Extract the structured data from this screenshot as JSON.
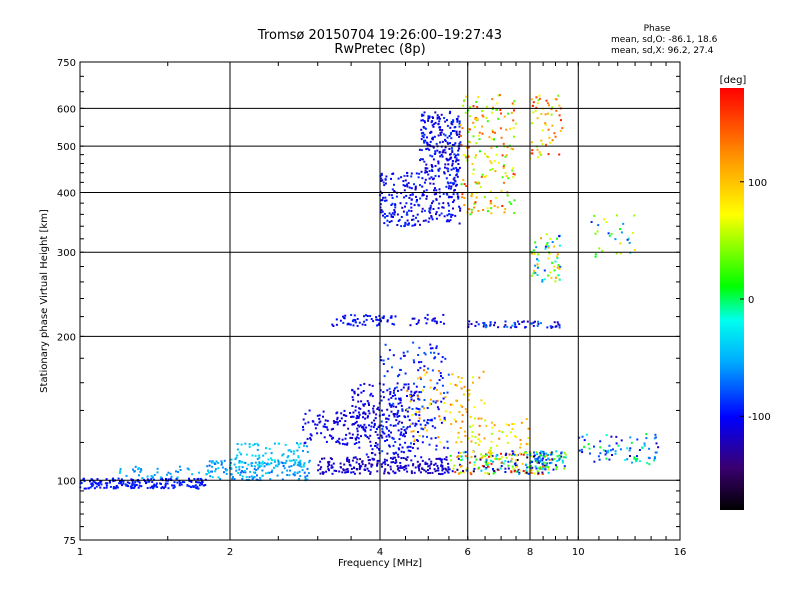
{
  "header": {
    "title_line1": "Tromsø 20150704 19:26:00–19:27:43",
    "title_line2": "RwPretec (8p)",
    "phase_heading": "Phase",
    "phase_o": "mean, sd,O: -86.1, 18.6",
    "phase_x": "mean, sd,X:  96.2, 27.4"
  },
  "colorbar": {
    "unit": "[deg]",
    "ticks": [
      {
        "value": 100,
        "label": "100"
      },
      {
        "value": 0,
        "label": "0"
      },
      {
        "value": -100,
        "label": "-100"
      }
    ],
    "range": [
      -180,
      180
    ]
  },
  "chart_data": {
    "type": "scatter",
    "title": "Tromsø 20150704 19:26:00–19:27:43",
    "subtitle": "RwPretec (8p)",
    "xlabel": "Frequency [MHz]",
    "ylabel": "Stationary phase Virtual Height [km]",
    "x_scale": "log",
    "y_scale": "log",
    "xlim": [
      1,
      16
    ],
    "ylim": [
      75,
      750
    ],
    "x_ticks": [
      {
        "value": 1,
        "label": "1"
      },
      {
        "value": 2,
        "label": "2"
      },
      {
        "value": 4,
        "label": "4"
      },
      {
        "value": 6,
        "label": "6"
      },
      {
        "value": 8,
        "label": "8"
      },
      {
        "value": 10,
        "label": "10"
      },
      {
        "value": 16,
        "label": "16"
      }
    ],
    "y_ticks": [
      {
        "value": 75,
        "label": "75"
      },
      {
        "value": 100,
        "label": "100"
      },
      {
        "value": 200,
        "label": "200"
      },
      {
        "value": 300,
        "label": "300"
      },
      {
        "value": 400,
        "label": "400"
      },
      {
        "value": 500,
        "label": "500"
      },
      {
        "value": 600,
        "label": "600"
      },
      {
        "value": 750,
        "label": "750"
      }
    ],
    "x_grid": [
      2,
      4,
      6,
      8,
      10
    ],
    "y_grid": [
      100,
      200,
      300,
      400,
      500,
      600
    ],
    "grid": true,
    "color_variable": "Phase [deg]",
    "clusters": [
      {
        "f": [
          1.0,
          1.8
        ],
        "h": [
          96,
          101
        ],
        "phase": [
          -110,
          -95
        ],
        "n": 200
      },
      {
        "f": [
          1.2,
          1.9
        ],
        "h": [
          101,
          107
        ],
        "phase": [
          -70,
          -40
        ],
        "n": 40
      },
      {
        "f": [
          1.8,
          2.9
        ],
        "h": [
          100,
          110
        ],
        "phase": [
          -80,
          -40
        ],
        "n": 160
      },
      {
        "f": [
          2.0,
          2.9
        ],
        "h": [
          107,
          120
        ],
        "phase": [
          -60,
          -30
        ],
        "n": 80
      },
      {
        "f": [
          2.8,
          4.0
        ],
        "h": [
          118,
          140
        ],
        "phase": [
          -130,
          -105
        ],
        "n": 120
      },
      {
        "f": [
          3.0,
          5.5
        ],
        "h": [
          103,
          112
        ],
        "phase": [
          -140,
          -110
        ],
        "n": 220
      },
      {
        "f": [
          3.5,
          4.8
        ],
        "h": [
          112,
          160
        ],
        "phase": [
          -130,
          -100
        ],
        "n": 220
      },
      {
        "f": [
          4.0,
          5.5
        ],
        "h": [
          115,
          195
        ],
        "phase": [
          -120,
          -80
        ],
        "n": 150
      },
      {
        "f": [
          4.5,
          6.5
        ],
        "h": [
          120,
          170
        ],
        "phase": [
          60,
          140
        ],
        "n": 90
      },
      {
        "f": [
          5.5,
          8.8
        ],
        "h": [
          103,
          115
        ],
        "phase": [
          -180,
          180
        ],
        "n": 200
      },
      {
        "f": [
          6.0,
          8.0
        ],
        "h": [
          110,
          135
        ],
        "phase": [
          40,
          130
        ],
        "n": 60
      },
      {
        "f": [
          8.0,
          9.5
        ],
        "h": [
          105,
          115
        ],
        "phase": [
          -130,
          40
        ],
        "n": 80
      },
      {
        "f": [
          10.0,
          14.5
        ],
        "h": [
          108,
          125
        ],
        "phase": [
          -130,
          0
        ],
        "n": 80
      },
      {
        "f": [
          3.2,
          4.3
        ],
        "h": [
          210,
          222
        ],
        "phase": [
          -120,
          -90
        ],
        "n": 60
      },
      {
        "f": [
          4.6,
          5.4
        ],
        "h": [
          210,
          222
        ],
        "phase": [
          -130,
          -100
        ],
        "n": 20
      },
      {
        "f": [
          6.0,
          9.2
        ],
        "h": [
          208,
          215
        ],
        "phase": [
          -140,
          -60
        ],
        "n": 60
      },
      {
        "f": [
          4.0,
          5.8
        ],
        "h": [
          340,
          440
        ],
        "phase": [
          -130,
          -90
        ],
        "n": 260
      },
      {
        "f": [
          4.8,
          5.8
        ],
        "h": [
          440,
          590
        ],
        "phase": [
          -130,
          -90
        ],
        "n": 220
      },
      {
        "f": [
          5.8,
          7.5
        ],
        "h": [
          360,
          640
        ],
        "phase": [
          0,
          170
        ],
        "n": 180
      },
      {
        "f": [
          8.0,
          9.3
        ],
        "h": [
          470,
          640
        ],
        "phase": [
          30,
          170
        ],
        "n": 60
      },
      {
        "f": [
          8.0,
          9.2
        ],
        "h": [
          260,
          330
        ],
        "phase": [
          -120,
          120
        ],
        "n": 60
      },
      {
        "f": [
          10.5,
          13.0
        ],
        "h": [
          290,
          360
        ],
        "phase": [
          -100,
          100
        ],
        "n": 30
      }
    ]
  }
}
